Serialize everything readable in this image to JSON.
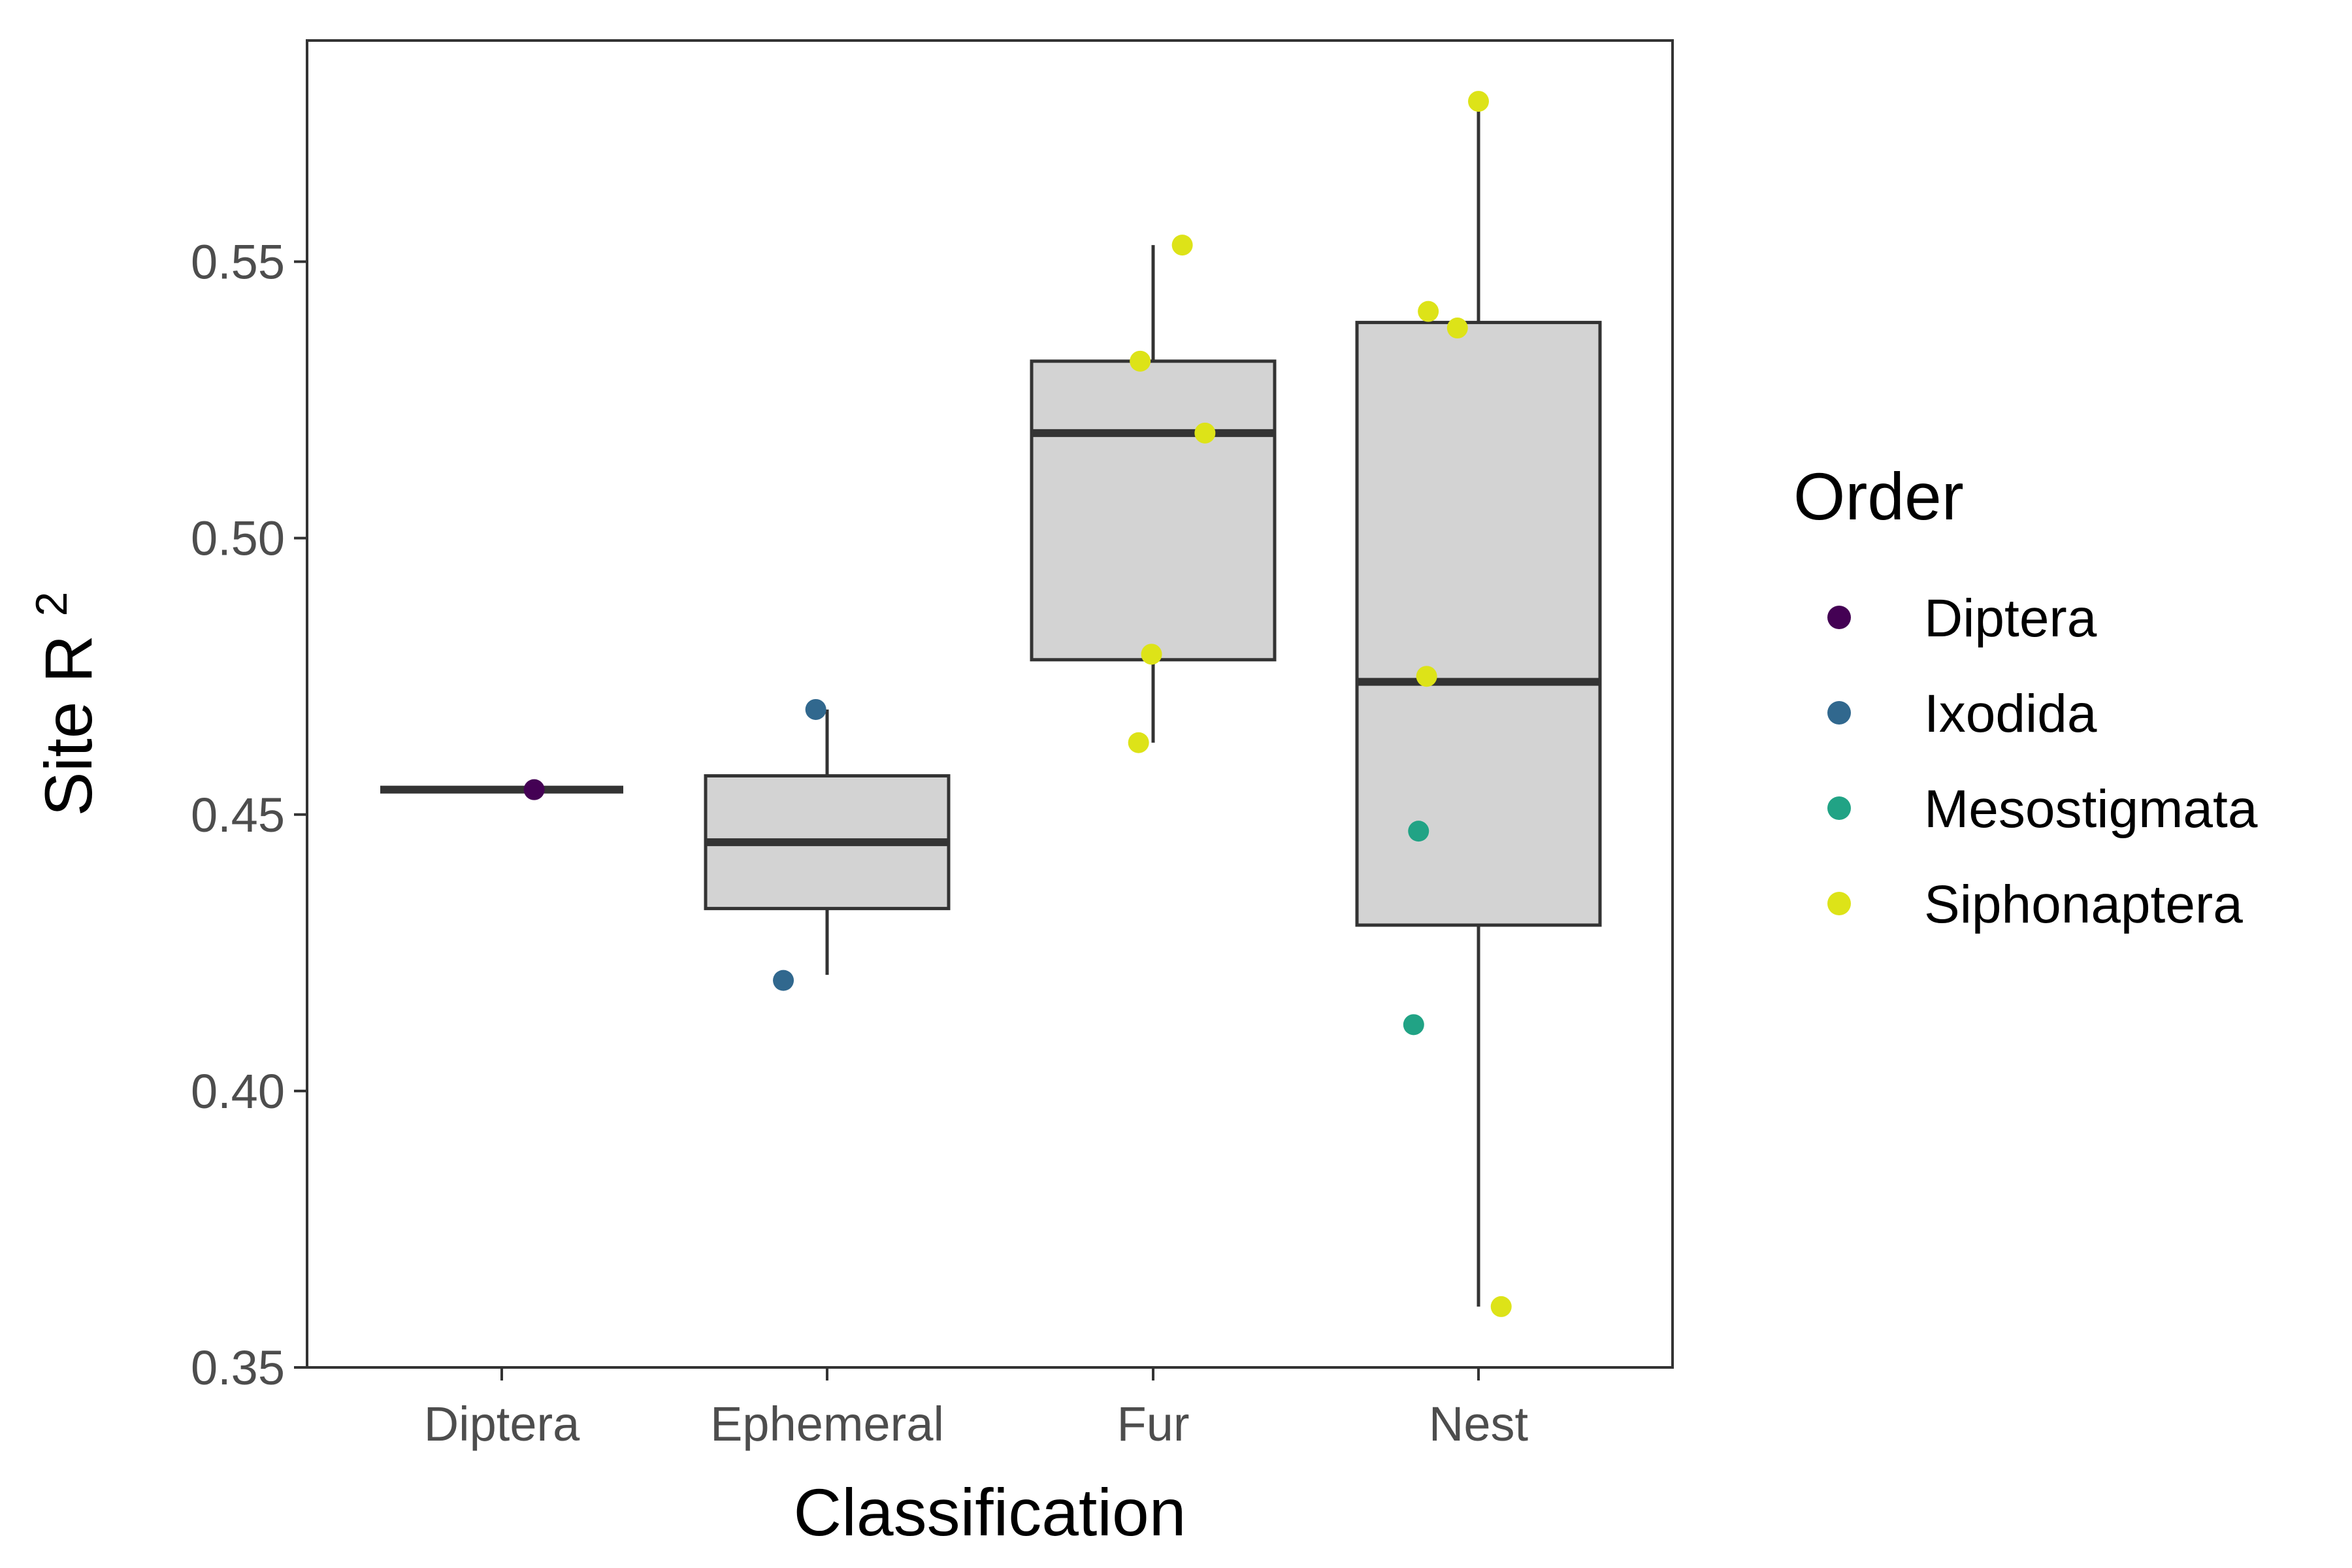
{
  "chart_data": {
    "type": "box",
    "xlabel": "Classification",
    "ylabel": "Site R",
    "ylabel_superscript": "2",
    "ylim": [
      0.35,
      0.59
    ],
    "yticks": [
      0.35,
      0.4,
      0.45,
      0.5,
      0.55
    ],
    "ytick_labels": [
      "0.35",
      "0.40",
      "0.45",
      "0.50",
      "0.55"
    ],
    "categories": [
      "Diptera",
      "Ephemeral",
      "Fur",
      "Nest"
    ],
    "boxes": [
      {
        "category": "Diptera",
        "whisker_low": 0.4545,
        "q1": 0.4545,
        "median": 0.4545,
        "q3": 0.4545,
        "whisker_high": 0.4545
      },
      {
        "category": "Ephemeral",
        "whisker_low": 0.421,
        "q1": 0.433,
        "median": 0.445,
        "q3": 0.457,
        "whisker_high": 0.469
      },
      {
        "category": "Fur",
        "whisker_low": 0.463,
        "q1": 0.478,
        "median": 0.519,
        "q3": 0.532,
        "whisker_high": 0.553
      },
      {
        "category": "Nest",
        "whisker_low": 0.361,
        "q1": 0.43,
        "median": 0.474,
        "q3": 0.539,
        "whisker_high": 0.579
      }
    ],
    "points": [
      {
        "category": "Diptera",
        "jitter": 0.2,
        "y": 0.4545,
        "order": "Diptera"
      },
      {
        "category": "Ephemeral",
        "jitter": -0.27,
        "y": 0.42,
        "order": "Ixodida"
      },
      {
        "category": "Ephemeral",
        "jitter": -0.07,
        "y": 0.469,
        "order": "Ixodida"
      },
      {
        "category": "Fur",
        "jitter": -0.08,
        "y": 0.532,
        "order": "Siphonaptera"
      },
      {
        "category": "Fur",
        "jitter": 0.18,
        "y": 0.553,
        "order": "Siphonaptera"
      },
      {
        "category": "Fur",
        "jitter": 0.32,
        "y": 0.519,
        "order": "Siphonaptera"
      },
      {
        "category": "Fur",
        "jitter": -0.01,
        "y": 0.479,
        "order": "Siphonaptera"
      },
      {
        "category": "Fur",
        "jitter": -0.09,
        "y": 0.463,
        "order": "Siphonaptera"
      },
      {
        "category": "Nest",
        "jitter": 0.0,
        "y": 0.579,
        "order": "Siphonaptera"
      },
      {
        "category": "Nest",
        "jitter": -0.31,
        "y": 0.541,
        "order": "Siphonaptera"
      },
      {
        "category": "Nest",
        "jitter": -0.13,
        "y": 0.538,
        "order": "Siphonaptera"
      },
      {
        "category": "Nest",
        "jitter": -0.32,
        "y": 0.475,
        "order": "Siphonaptera"
      },
      {
        "category": "Nest",
        "jitter": -0.37,
        "y": 0.447,
        "order": "Mesostigmata"
      },
      {
        "category": "Nest",
        "jitter": -0.4,
        "y": 0.412,
        "order": "Mesostigmata"
      },
      {
        "category": "Nest",
        "jitter": 0.14,
        "y": 0.361,
        "order": "Siphonaptera"
      }
    ],
    "legend": {
      "title": "Order",
      "position": "right",
      "entries": [
        {
          "label": "Diptera",
          "color": "#440154"
        },
        {
          "label": "Ixodida",
          "color": "#31688e"
        },
        {
          "label": "Mesostigmata",
          "color": "#21a385"
        },
        {
          "label": "Siphonaptera",
          "color": "#dde318"
        }
      ]
    },
    "box_fill": "#d3d3d3",
    "box_stroke": "#333333",
    "grid": false
  }
}
